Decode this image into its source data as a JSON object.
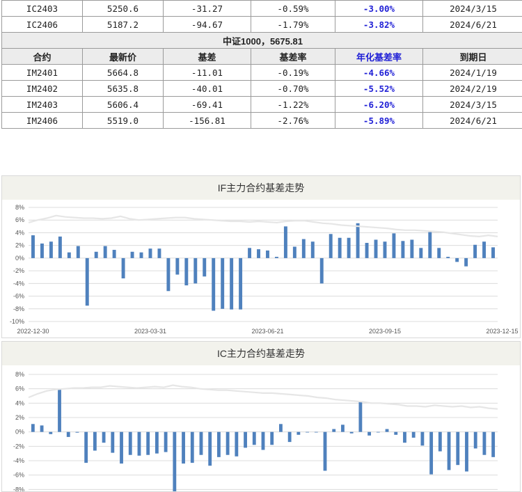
{
  "table": {
    "top_rows": [
      {
        "contract": "IC2403",
        "price": "5250.6",
        "basis": "-31.27",
        "basis_rate": "-0.59%",
        "annual": "-3.00%",
        "expiry": "2024/3/15"
      },
      {
        "contract": "IC2406",
        "price": "5187.2",
        "basis": "-94.67",
        "basis_rate": "-1.79%",
        "annual": "-3.82%",
        "expiry": "2024/6/21"
      }
    ],
    "section_title": "中证1000，5675.81",
    "headers": [
      "合约",
      "最新价",
      "基差",
      "基差率",
      "年化基差率",
      "到期日"
    ],
    "rows": [
      {
        "contract": "IM2401",
        "price": "5664.8",
        "basis": "-11.01",
        "basis_rate": "-0.19%",
        "annual": "-4.66%",
        "expiry": "2024/1/19"
      },
      {
        "contract": "IM2402",
        "price": "5635.8",
        "basis": "-40.01",
        "basis_rate": "-0.70%",
        "annual": "-5.52%",
        "expiry": "2024/2/19"
      },
      {
        "contract": "IM2403",
        "price": "5606.4",
        "basis": "-69.41",
        "basis_rate": "-1.22%",
        "annual": "-6.20%",
        "expiry": "2024/3/15"
      },
      {
        "contract": "IM2406",
        "price": "5519.0",
        "basis": "-156.81",
        "basis_rate": "-2.76%",
        "annual": "-5.89%",
        "expiry": "2024/6/21"
      }
    ]
  },
  "colors": {
    "bar": "#4f81bd",
    "line": "#e6e6e6",
    "grid": "#dcdcdc",
    "title_bg": "#f2f2ec"
  },
  "chart_data": [
    {
      "type": "bar",
      "title": "IF主力合约基差走势",
      "ylim": [
        -10,
        8
      ],
      "yticks": [
        8,
        6,
        4,
        2,
        0,
        -2,
        -4,
        -6,
        -8,
        -10
      ],
      "ytick_labels": [
        "8%",
        "6%",
        "4%",
        "2%",
        "0%",
        "-2%",
        "-4%",
        "-6%",
        "-8%",
        "-10%"
      ],
      "xtick_labels": [
        "2022-12-30",
        "2023-03-31",
        "2023-06-21",
        "2023-09-15",
        "2023-12-15"
      ],
      "xtick_index": [
        0,
        13,
        26,
        39,
        52
      ],
      "bar_values": [
        3.6,
        2.3,
        2.6,
        3.4,
        0.9,
        1.9,
        -7.5,
        1.0,
        1.9,
        1.3,
        -3.2,
        1.0,
        0.9,
        1.5,
        1.5,
        -5.2,
        -2.6,
        -4.3,
        -4.0,
        -2.9,
        -8.3,
        -8.0,
        -8.1,
        -8.1,
        1.6,
        1.4,
        1.2,
        0.2,
        5.0,
        1.8,
        3.0,
        2.6,
        -4.0,
        3.8,
        3.2,
        3.2,
        5.5,
        2.4,
        2.9,
        2.6,
        3.9,
        2.7,
        2.9,
        1.6,
        4.1,
        1.6,
        0.2,
        -0.6,
        -1.3,
        2.1,
        2.6,
        1.7
      ],
      "line_values": [
        5.6,
        6.0,
        6.3,
        6.7,
        6.5,
        6.4,
        6.3,
        6.3,
        6.2,
        6.3,
        6.6,
        6.2,
        6.0,
        6.1,
        6.2,
        6.3,
        6.4,
        6.4,
        6.2,
        6.1,
        6.0,
        5.9,
        5.8,
        5.8,
        5.7,
        5.8,
        5.7,
        5.6,
        5.8,
        5.9,
        5.9,
        5.7,
        5.5,
        5.4,
        5.2,
        5.1,
        5.0,
        4.9,
        4.8,
        4.7,
        4.5,
        4.4,
        4.4,
        4.3,
        4.2,
        4.1,
        3.9,
        3.7,
        3.5,
        3.4,
        3.6,
        3.4
      ]
    },
    {
      "type": "bar",
      "title": "IC主力合约基差走势",
      "ylim": [
        -10,
        8
      ],
      "yticks": [
        8,
        6,
        4,
        2,
        0,
        -2,
        -4,
        -6,
        -8
      ],
      "ytick_labels": [
        "8%",
        "6%",
        "4%",
        "2%",
        "0%",
        "-2%",
        "-4%",
        "-6%",
        "-8%"
      ],
      "bar_values": [
        1.1,
        0.9,
        -0.3,
        6.0,
        -0.7,
        -0.1,
        -4.3,
        -2.6,
        -1.5,
        -2.9,
        -4.4,
        -3.2,
        -3.3,
        -3.2,
        -3.0,
        -2.8,
        -10.0,
        -4.4,
        -4.3,
        -3.2,
        -4.7,
        -3.5,
        -3.2,
        -3.4,
        -2.2,
        -1.8,
        -2.5,
        -1.8,
        1.1,
        -1.4,
        -0.4,
        0.0,
        0.0,
        -5.4,
        0.4,
        1.0,
        -0.2,
        4.2,
        -0.5,
        0.0,
        0.4,
        -0.4,
        -1.5,
        -0.8,
        -1.9,
        -5.9,
        -2.7,
        -5.3,
        -4.6,
        -5.5,
        -2.3,
        -3.2,
        -3.5
      ],
      "line_values": [
        4.8,
        5.3,
        5.7,
        5.9,
        6.0,
        6.1,
        6.1,
        6.2,
        6.2,
        6.4,
        6.3,
        6.2,
        6.1,
        6.2,
        6.3,
        6.2,
        6.5,
        6.3,
        6.2,
        6.0,
        5.9,
        5.8,
        5.8,
        5.7,
        5.6,
        5.5,
        5.4,
        5.4,
        5.3,
        5.2,
        5.1,
        5.0,
        4.8,
        4.7,
        4.5,
        4.4,
        4.3,
        4.2,
        4.0,
        4.0,
        3.9,
        3.8,
        3.6,
        3.6,
        3.5,
        3.7,
        3.6,
        3.5,
        3.6,
        3.4,
        3.5,
        3.3,
        3.2
      ]
    }
  ]
}
